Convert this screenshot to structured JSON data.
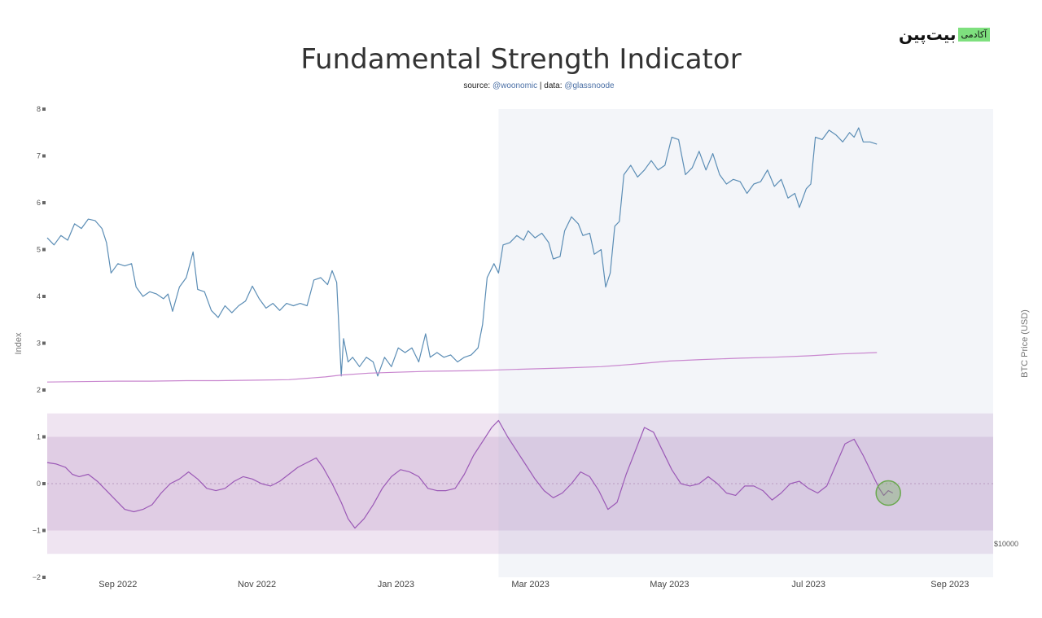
{
  "logo": {
    "word": "بیت‌پین",
    "badge": "آکادمی"
  },
  "chart_data": {
    "type": "line",
    "title": "Fundamental Strength Indicator",
    "subtitle_parts": [
      "source: ",
      "@woonomic",
      " | data: ",
      "@glassnoode"
    ],
    "ylabel": "Index",
    "y2label": "BTC Price (USD)",
    "y2_tick": "$10000",
    "ylim": [
      -2,
      8
    ],
    "y_ticks": [
      8,
      7,
      6,
      5,
      4,
      3,
      2,
      1,
      0,
      -1,
      -2
    ],
    "y_tick_labels": [
      "8",
      "7",
      "6",
      "5",
      "4",
      "3",
      "2",
      "1",
      "0",
      "−1",
      "−2"
    ],
    "x_ticks": [
      "2022-09-01",
      "2022-11-01",
      "2023-01-01",
      "2023-03-01",
      "2023-05-01",
      "2023-07-01",
      "2023-09-01"
    ],
    "x_tick_labels": [
      "Sep 2022",
      "Nov 2022",
      "Jan 2023",
      "Mar 2023",
      "May 2023",
      "Jul 2023",
      "Sep 2023"
    ],
    "xlim": [
      "2022-08-01",
      "2023-09-20"
    ],
    "shaded_region": {
      "x": [
        "2023-02-15",
        "2023-09-20"
      ]
    },
    "bands": [
      {
        "y": [
          -1.5,
          1.5
        ],
        "color": "#efe4f1"
      },
      {
        "y": [
          -1,
          1
        ],
        "color": "#e0cde4"
      }
    ],
    "series": [
      {
        "color": "#5b8db5",
        "points": [
          [
            "2022-08-01",
            5.25
          ],
          [
            "2022-08-04",
            5.1
          ],
          [
            "2022-08-07",
            5.3
          ],
          [
            "2022-08-10",
            5.2
          ],
          [
            "2022-08-13",
            5.55
          ],
          [
            "2022-08-16",
            5.45
          ],
          [
            "2022-08-19",
            5.65
          ],
          [
            "2022-08-22",
            5.62
          ],
          [
            "2022-08-25",
            5.45
          ],
          [
            "2022-08-27",
            5.15
          ],
          [
            "2022-08-29",
            4.5
          ],
          [
            "2022-09-01",
            4.7
          ],
          [
            "2022-09-04",
            4.65
          ],
          [
            "2022-09-07",
            4.7
          ],
          [
            "2022-09-09",
            4.2
          ],
          [
            "2022-09-12",
            4.0
          ],
          [
            "2022-09-15",
            4.1
          ],
          [
            "2022-09-18",
            4.05
          ],
          [
            "2022-09-21",
            3.95
          ],
          [
            "2022-09-23",
            4.05
          ],
          [
            "2022-09-25",
            3.68
          ],
          [
            "2022-09-28",
            4.2
          ],
          [
            "2022-10-01",
            4.4
          ],
          [
            "2022-10-04",
            4.95
          ],
          [
            "2022-10-06",
            4.15
          ],
          [
            "2022-10-09",
            4.1
          ],
          [
            "2022-10-12",
            3.7
          ],
          [
            "2022-10-15",
            3.55
          ],
          [
            "2022-10-18",
            3.8
          ],
          [
            "2022-10-21",
            3.65
          ],
          [
            "2022-10-24",
            3.8
          ],
          [
            "2022-10-27",
            3.9
          ],
          [
            "2022-10-30",
            4.22
          ],
          [
            "2022-11-02",
            3.95
          ],
          [
            "2022-11-05",
            3.75
          ],
          [
            "2022-11-08",
            3.85
          ],
          [
            "2022-11-11",
            3.7
          ],
          [
            "2022-11-14",
            3.85
          ],
          [
            "2022-11-17",
            3.8
          ],
          [
            "2022-11-20",
            3.85
          ],
          [
            "2022-11-23",
            3.8
          ],
          [
            "2022-11-26",
            4.35
          ],
          [
            "2022-11-29",
            4.4
          ],
          [
            "2022-12-02",
            4.25
          ],
          [
            "2022-12-04",
            4.55
          ],
          [
            "2022-12-06",
            4.3
          ],
          [
            "2022-12-08",
            2.3
          ],
          [
            "2022-12-09",
            3.1
          ],
          [
            "2022-12-11",
            2.6
          ],
          [
            "2022-12-13",
            2.7
          ],
          [
            "2022-12-16",
            2.5
          ],
          [
            "2022-12-19",
            2.7
          ],
          [
            "2022-12-22",
            2.6
          ],
          [
            "2022-12-24",
            2.3
          ],
          [
            "2022-12-27",
            2.7
          ],
          [
            "2022-12-30",
            2.5
          ],
          [
            "2023-01-02",
            2.9
          ],
          [
            "2023-01-05",
            2.8
          ],
          [
            "2023-01-08",
            2.9
          ],
          [
            "2023-01-11",
            2.6
          ],
          [
            "2023-01-14",
            3.2
          ],
          [
            "2023-01-16",
            2.7
          ],
          [
            "2023-01-19",
            2.8
          ],
          [
            "2023-01-22",
            2.7
          ],
          [
            "2023-01-25",
            2.75
          ],
          [
            "2023-01-28",
            2.6
          ],
          [
            "2023-01-31",
            2.7
          ],
          [
            "2023-02-03",
            2.75
          ],
          [
            "2023-02-06",
            2.9
          ],
          [
            "2023-02-08",
            3.4
          ],
          [
            "2023-02-10",
            4.4
          ],
          [
            "2023-02-13",
            4.7
          ],
          [
            "2023-02-15",
            4.5
          ],
          [
            "2023-02-17",
            5.1
          ],
          [
            "2023-02-20",
            5.15
          ],
          [
            "2023-02-23",
            5.3
          ],
          [
            "2023-02-26",
            5.2
          ],
          [
            "2023-02-28",
            5.4
          ],
          [
            "2023-03-03",
            5.25
          ],
          [
            "2023-03-06",
            5.35
          ],
          [
            "2023-03-09",
            5.15
          ],
          [
            "2023-03-11",
            4.8
          ],
          [
            "2023-03-14",
            4.85
          ],
          [
            "2023-03-16",
            5.4
          ],
          [
            "2023-03-19",
            5.7
          ],
          [
            "2023-03-22",
            5.55
          ],
          [
            "2023-03-24",
            5.3
          ],
          [
            "2023-03-27",
            5.35
          ],
          [
            "2023-03-29",
            4.9
          ],
          [
            "2023-04-01",
            5.0
          ],
          [
            "2023-04-03",
            4.2
          ],
          [
            "2023-04-05",
            4.5
          ],
          [
            "2023-04-07",
            5.5
          ],
          [
            "2023-04-09",
            5.6
          ],
          [
            "2023-04-11",
            6.6
          ],
          [
            "2023-04-14",
            6.8
          ],
          [
            "2023-04-17",
            6.55
          ],
          [
            "2023-04-20",
            6.7
          ],
          [
            "2023-04-23",
            6.9
          ],
          [
            "2023-04-26",
            6.7
          ],
          [
            "2023-04-29",
            6.8
          ],
          [
            "2023-05-02",
            7.4
          ],
          [
            "2023-05-05",
            7.35
          ],
          [
            "2023-05-08",
            6.6
          ],
          [
            "2023-05-11",
            6.75
          ],
          [
            "2023-05-14",
            7.1
          ],
          [
            "2023-05-17",
            6.7
          ],
          [
            "2023-05-20",
            7.05
          ],
          [
            "2023-05-23",
            6.6
          ],
          [
            "2023-05-26",
            6.4
          ],
          [
            "2023-05-29",
            6.5
          ],
          [
            "2023-06-01",
            6.45
          ],
          [
            "2023-06-04",
            6.2
          ],
          [
            "2023-06-07",
            6.4
          ],
          [
            "2023-06-10",
            6.45
          ],
          [
            "2023-06-13",
            6.7
          ],
          [
            "2023-06-16",
            6.35
          ],
          [
            "2023-06-19",
            6.5
          ],
          [
            "2023-06-22",
            6.1
          ],
          [
            "2023-06-25",
            6.2
          ],
          [
            "2023-06-27",
            5.9
          ],
          [
            "2023-06-30",
            6.3
          ],
          [
            "2023-07-02",
            6.4
          ],
          [
            "2023-07-04",
            7.4
          ],
          [
            "2023-07-07",
            7.35
          ],
          [
            "2023-07-10",
            7.55
          ],
          [
            "2023-07-13",
            7.45
          ],
          [
            "2023-07-16",
            7.3
          ],
          [
            "2023-07-19",
            7.5
          ],
          [
            "2023-07-21",
            7.4
          ],
          [
            "2023-07-23",
            7.6
          ],
          [
            "2023-07-25",
            7.3
          ],
          [
            "2023-07-28",
            7.3
          ],
          [
            "2023-07-31",
            7.25
          ]
        ]
      },
      {
        "color": "#c987cf",
        "points": [
          [
            "2022-08-01",
            2.17
          ],
          [
            "2022-08-15",
            2.18
          ],
          [
            "2022-09-01",
            2.19
          ],
          [
            "2022-09-15",
            2.19
          ],
          [
            "2022-10-01",
            2.2
          ],
          [
            "2022-10-15",
            2.2
          ],
          [
            "2022-11-01",
            2.21
          ],
          [
            "2022-11-15",
            2.22
          ],
          [
            "2022-12-01",
            2.28
          ],
          [
            "2022-12-08",
            2.32
          ],
          [
            "2022-12-20",
            2.36
          ],
          [
            "2023-01-01",
            2.38
          ],
          [
            "2023-01-15",
            2.4
          ],
          [
            "2023-02-01",
            2.41
          ],
          [
            "2023-02-15",
            2.43
          ],
          [
            "2023-03-01",
            2.45
          ],
          [
            "2023-03-15",
            2.47
          ],
          [
            "2023-04-01",
            2.5
          ],
          [
            "2023-04-15",
            2.55
          ],
          [
            "2023-05-01",
            2.62
          ],
          [
            "2023-05-15",
            2.65
          ],
          [
            "2023-06-01",
            2.68
          ],
          [
            "2023-06-15",
            2.7
          ],
          [
            "2023-07-01",
            2.73
          ],
          [
            "2023-07-15",
            2.77
          ],
          [
            "2023-07-31",
            2.8
          ]
        ]
      },
      {
        "color": "#9b59b6",
        "points": [
          [
            "2022-08-01",
            0.45
          ],
          [
            "2022-08-05",
            0.42
          ],
          [
            "2022-08-09",
            0.35
          ],
          [
            "2022-08-12",
            0.2
          ],
          [
            "2022-08-15",
            0.15
          ],
          [
            "2022-08-19",
            0.2
          ],
          [
            "2022-08-23",
            0.05
          ],
          [
            "2022-08-27",
            -0.15
          ],
          [
            "2022-08-31",
            -0.35
          ],
          [
            "2022-09-04",
            -0.55
          ],
          [
            "2022-09-08",
            -0.6
          ],
          [
            "2022-09-12",
            -0.55
          ],
          [
            "2022-09-16",
            -0.45
          ],
          [
            "2022-09-20",
            -0.2
          ],
          [
            "2022-09-24",
            0.0
          ],
          [
            "2022-09-28",
            0.1
          ],
          [
            "2022-10-02",
            0.25
          ],
          [
            "2022-10-06",
            0.1
          ],
          [
            "2022-10-10",
            -0.1
          ],
          [
            "2022-10-14",
            -0.15
          ],
          [
            "2022-10-18",
            -0.1
          ],
          [
            "2022-10-22",
            0.05
          ],
          [
            "2022-10-26",
            0.15
          ],
          [
            "2022-10-30",
            0.1
          ],
          [
            "2022-11-03",
            0.0
          ],
          [
            "2022-11-07",
            -0.05
          ],
          [
            "2022-11-11",
            0.05
          ],
          [
            "2022-11-15",
            0.2
          ],
          [
            "2022-11-19",
            0.35
          ],
          [
            "2022-11-23",
            0.45
          ],
          [
            "2022-11-27",
            0.55
          ],
          [
            "2022-11-30",
            0.35
          ],
          [
            "2022-12-04",
            0.0
          ],
          [
            "2022-12-08",
            -0.4
          ],
          [
            "2022-12-11",
            -0.75
          ],
          [
            "2022-12-14",
            -0.95
          ],
          [
            "2022-12-18",
            -0.75
          ],
          [
            "2022-12-22",
            -0.45
          ],
          [
            "2022-12-26",
            -0.1
          ],
          [
            "2022-12-30",
            0.15
          ],
          [
            "2023-01-03",
            0.3
          ],
          [
            "2023-01-07",
            0.25
          ],
          [
            "2023-01-11",
            0.15
          ],
          [
            "2023-01-15",
            -0.1
          ],
          [
            "2023-01-19",
            -0.15
          ],
          [
            "2023-01-23",
            -0.15
          ],
          [
            "2023-01-27",
            -0.1
          ],
          [
            "2023-01-31",
            0.2
          ],
          [
            "2023-02-04",
            0.6
          ],
          [
            "2023-02-08",
            0.9
          ],
          [
            "2023-02-12",
            1.2
          ],
          [
            "2023-02-15",
            1.35
          ],
          [
            "2023-02-19",
            1.0
          ],
          [
            "2023-02-23",
            0.7
          ],
          [
            "2023-02-27",
            0.4
          ],
          [
            "2023-03-03",
            0.1
          ],
          [
            "2023-03-07",
            -0.15
          ],
          [
            "2023-03-11",
            -0.3
          ],
          [
            "2023-03-15",
            -0.2
          ],
          [
            "2023-03-19",
            0.0
          ],
          [
            "2023-03-23",
            0.25
          ],
          [
            "2023-03-27",
            0.15
          ],
          [
            "2023-03-31",
            -0.15
          ],
          [
            "2023-04-04",
            -0.55
          ],
          [
            "2023-04-08",
            -0.4
          ],
          [
            "2023-04-12",
            0.2
          ],
          [
            "2023-04-16",
            0.7
          ],
          [
            "2023-04-20",
            1.2
          ],
          [
            "2023-04-24",
            1.1
          ],
          [
            "2023-04-28",
            0.7
          ],
          [
            "2023-05-02",
            0.3
          ],
          [
            "2023-05-06",
            0.0
          ],
          [
            "2023-05-10",
            -0.05
          ],
          [
            "2023-05-14",
            0.0
          ],
          [
            "2023-05-18",
            0.15
          ],
          [
            "2023-05-22",
            0.0
          ],
          [
            "2023-05-26",
            -0.2
          ],
          [
            "2023-05-30",
            -0.25
          ],
          [
            "2023-06-03",
            -0.05
          ],
          [
            "2023-06-07",
            -0.05
          ],
          [
            "2023-06-11",
            -0.15
          ],
          [
            "2023-06-15",
            -0.35
          ],
          [
            "2023-06-19",
            -0.2
          ],
          [
            "2023-06-23",
            0.0
          ],
          [
            "2023-06-27",
            0.05
          ],
          [
            "2023-07-01",
            -0.1
          ],
          [
            "2023-07-05",
            -0.2
          ],
          [
            "2023-07-09",
            -0.05
          ],
          [
            "2023-07-13",
            0.4
          ],
          [
            "2023-07-17",
            0.85
          ],
          [
            "2023-07-21",
            0.95
          ],
          [
            "2023-07-25",
            0.6
          ],
          [
            "2023-07-29",
            0.2
          ],
          [
            "2023-08-01",
            -0.1
          ],
          [
            "2023-08-03",
            -0.25
          ],
          [
            "2023-08-05",
            -0.15
          ],
          [
            "2023-08-07",
            -0.2
          ]
        ]
      }
    ],
    "highlight": {
      "x": "2023-08-05",
      "y": -0.2,
      "color": "#6aa84f"
    }
  }
}
